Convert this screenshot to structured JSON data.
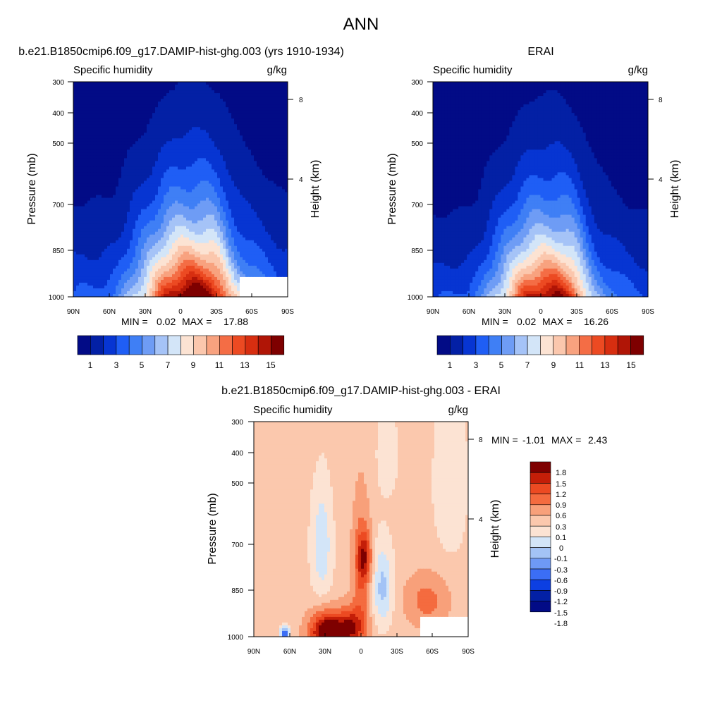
{
  "figure": {
    "season": "ANN",
    "colors": {
      "abs_levels": [
        "#020b86",
        "#0320a5",
        "#0735d2",
        "#1f5ef5",
        "#3f7ff5",
        "#6e9cf5",
        "#a5c3f7",
        "#d3e5f8",
        "#fce3d3",
        "#fbc7ad",
        "#f8a27f",
        "#f46d45",
        "#ec4a22",
        "#d72e10",
        "#b01506",
        "#7e0000"
      ],
      "diff_levels": [
        "#020b86",
        "#0320a5",
        "#0c3fe2",
        "#3b6ef5",
        "#6e99f5",
        "#a3c3f6",
        "#d3e5f8",
        "#fce3d3",
        "#fbc8ad",
        "#f8a07a",
        "#f46b3f",
        "#ec4a22",
        "#c41e08",
        "#7e0000"
      ]
    }
  },
  "chart_data": [
    {
      "type": "heatmap",
      "title": "b.e21.B1850cmip6.f09_g17.DAMIP-hist-ghg.003 (yrs 1910-1934)",
      "left_label": "Specific humidity",
      "units": "g/kg",
      "ylabel": "Pressure (mb)",
      "y2label": "Height (km)",
      "x_ticks": [
        "90N",
        "60N",
        "30N",
        "0",
        "30S",
        "60S",
        "90S"
      ],
      "y_ticks": [
        "300",
        "400",
        "500",
        "700",
        "850",
        "1000"
      ],
      "y2_ticks": [
        "8",
        "4"
      ],
      "ylim": [
        1000,
        300
      ],
      "min_label": "MIN =",
      "min_value": "0.02",
      "max_label": "MAX =",
      "max_value": "17.88",
      "colorbar_ticks": [
        "1",
        "3",
        "5",
        "7",
        "9",
        "11",
        "13",
        "15"
      ],
      "field": {
        "type": "humidity",
        "peak": 17.88,
        "lat_center": -10,
        "lat_width": 30,
        "scale_height": 0.5,
        "masked_region": "south-pole-surface"
      }
    },
    {
      "type": "heatmap",
      "title": "ERAI",
      "left_label": "Specific humidity",
      "units": "g/kg",
      "ylabel": "Pressure (mb)",
      "y2label": "Height (km)",
      "x_ticks": [
        "90N",
        "60N",
        "30N",
        "0",
        "30S",
        "60S",
        "90S"
      ],
      "y_ticks": [
        "300",
        "400",
        "500",
        "700",
        "850",
        "1000"
      ],
      "y2_ticks": [
        "8",
        "4"
      ],
      "ylim": [
        1000,
        300
      ],
      "min_label": "MIN =",
      "min_value": "0.02",
      "max_label": "MAX =",
      "max_value": "16.26",
      "colorbar_ticks": [
        "1",
        "3",
        "5",
        "7",
        "9",
        "11",
        "13",
        "15"
      ],
      "field": {
        "type": "humidity",
        "peak": 16.26,
        "lat_center": -5,
        "lat_width": 28,
        "scale_height": 0.48
      }
    },
    {
      "type": "heatmap",
      "title": "b.e21.B1850cmip6.f09_g17.DAMIP-hist-ghg.003 - ERAI",
      "left_label": "Specific humidity",
      "units": "g/kg",
      "ylabel": "Pressure (mb)",
      "y2label": "Height (km)",
      "x_ticks": [
        "90N",
        "60N",
        "30N",
        "0",
        "30S",
        "60S",
        "90S"
      ],
      "y_ticks": [
        "300",
        "400",
        "500",
        "700",
        "850",
        "1000"
      ],
      "y2_ticks": [
        "8",
        "4"
      ],
      "ylim": [
        1000,
        300
      ],
      "min_label": "MIN =",
      "min_value": "-1.01",
      "max_label": "MAX =",
      "max_value": "2.43",
      "colorbar_ticks": [
        "1.8",
        "1.5",
        "1.2",
        "0.9",
        "0.6",
        "0.3",
        "0.1",
        "0",
        "-0.1",
        "-0.3",
        "-0.6",
        "-0.9",
        "-1.2",
        "-1.5",
        "-1.8"
      ],
      "field": {
        "type": "difference",
        "min": -1.01,
        "max": 2.43
      }
    }
  ]
}
